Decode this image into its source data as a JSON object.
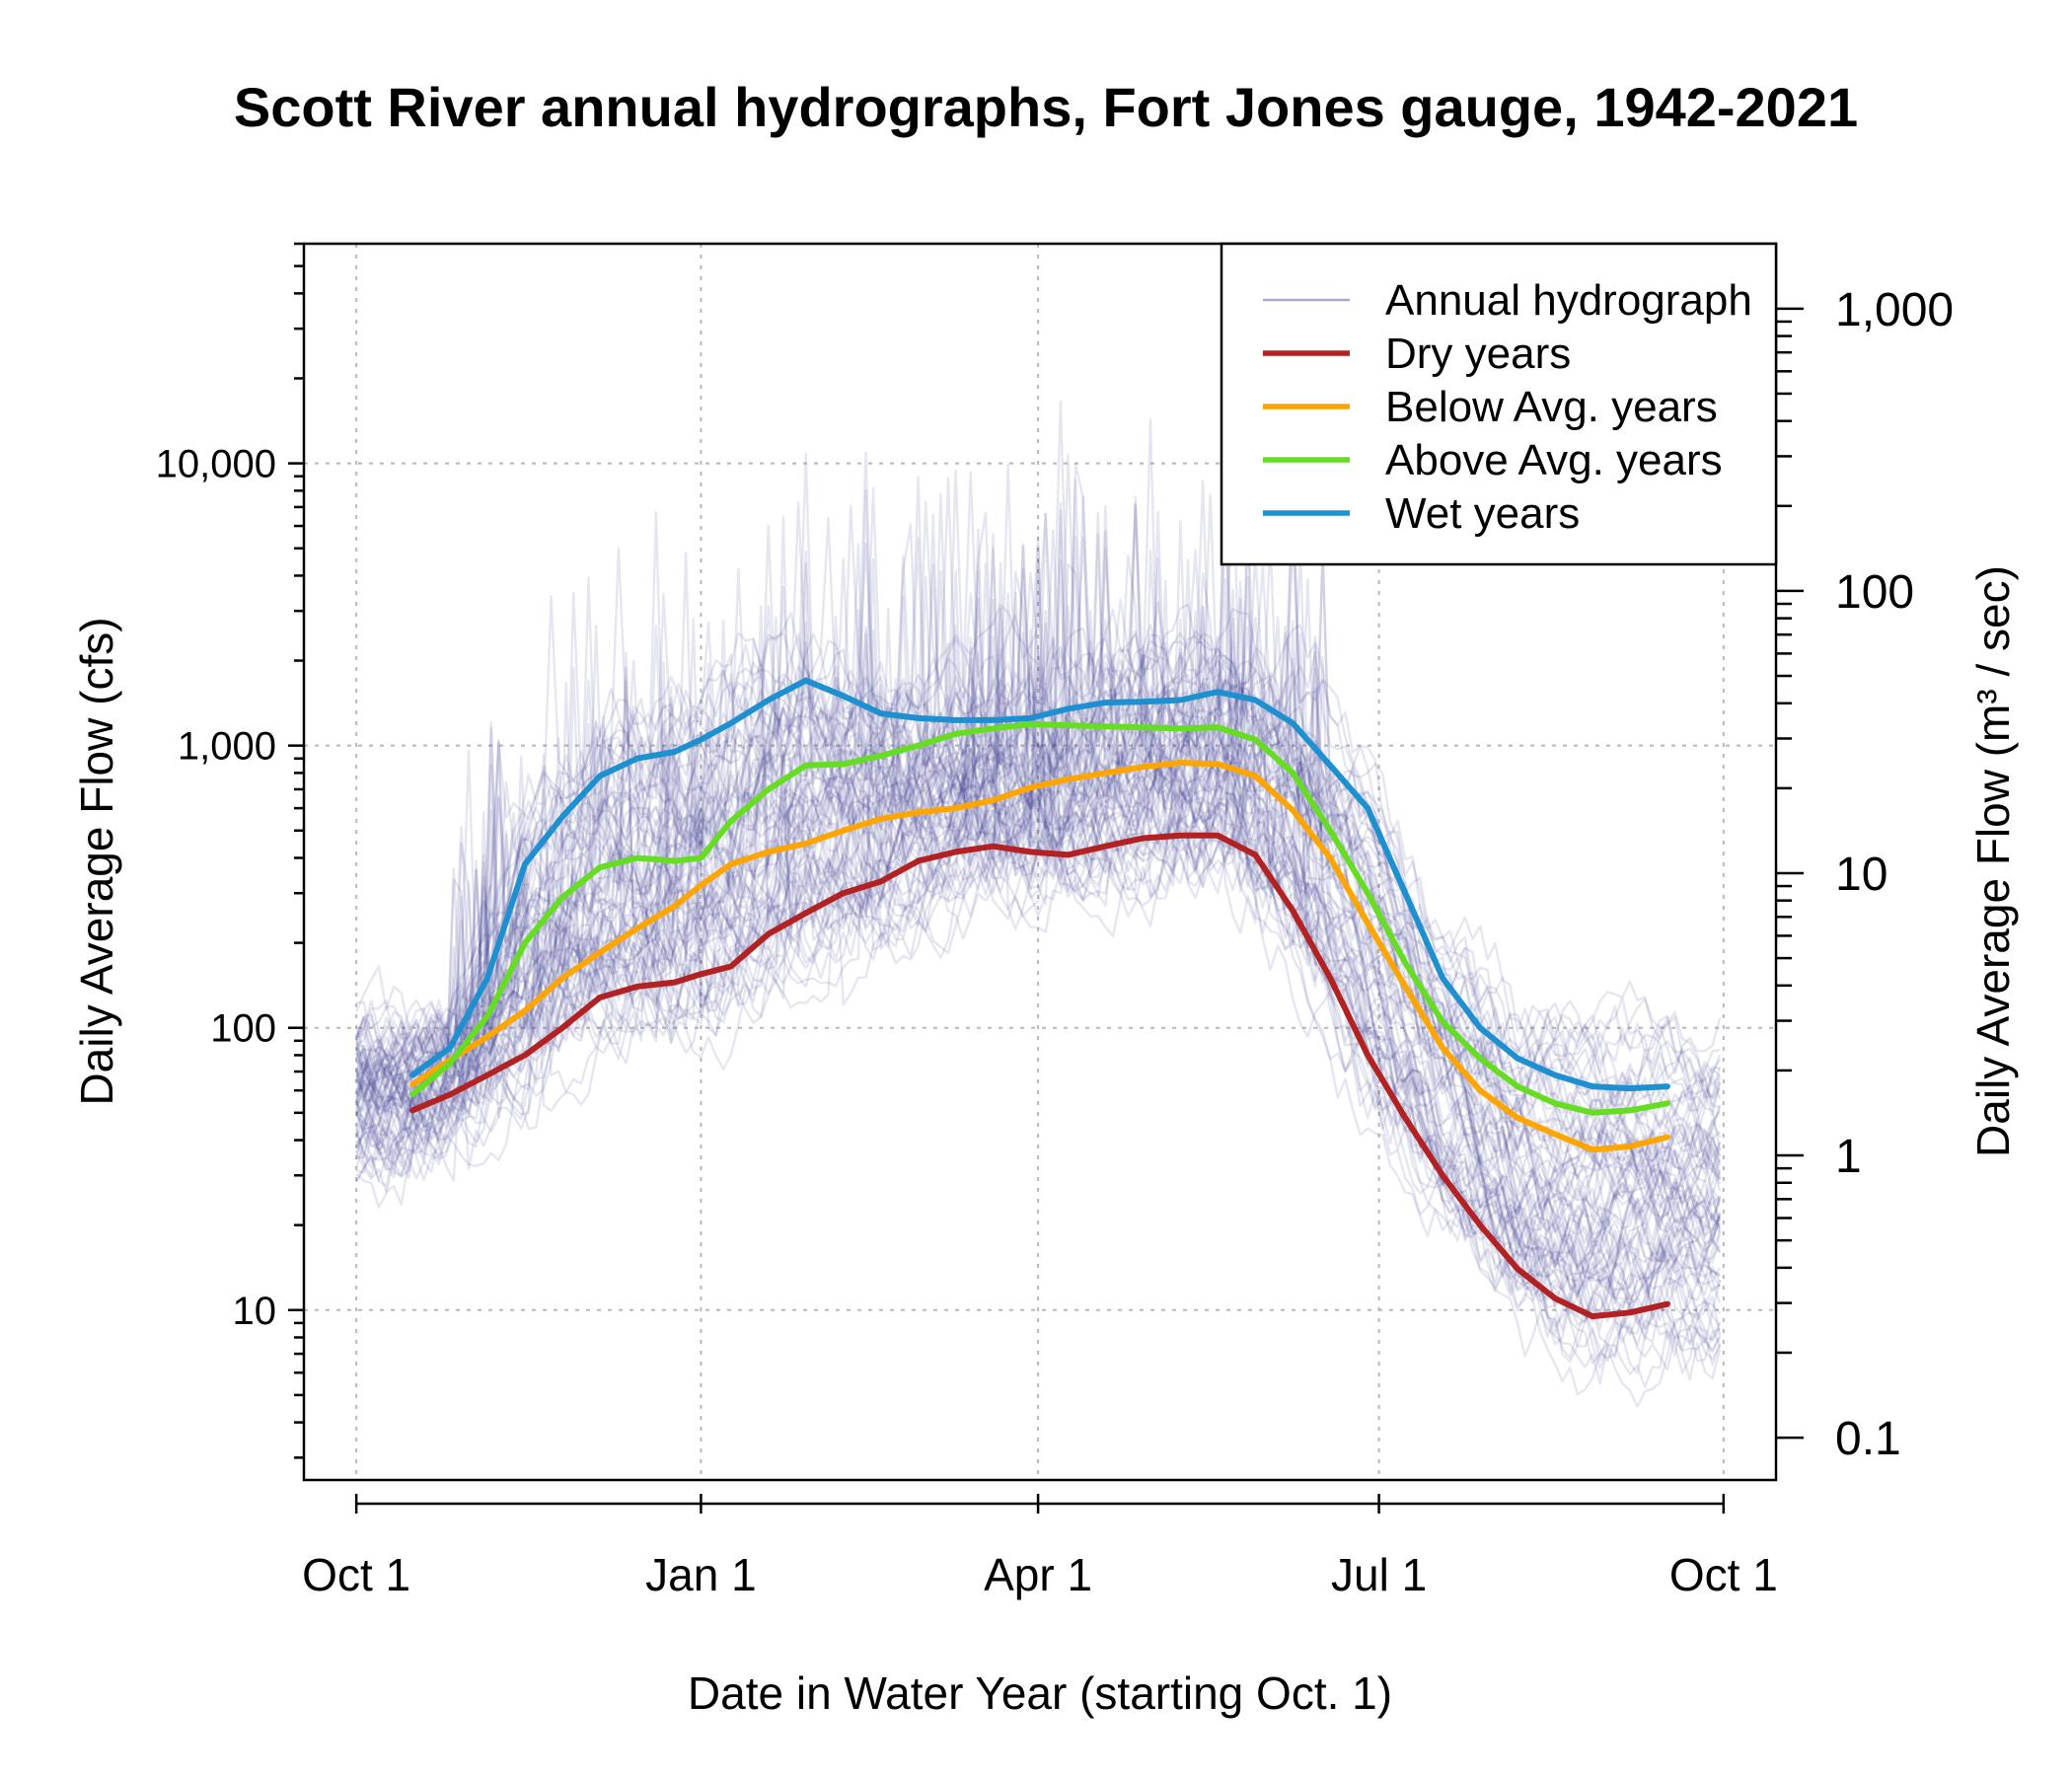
{
  "chart_data": {
    "type": "line",
    "title": "Scott River annual hydrographs, Fort Jones gauge, 1942-2021",
    "xlabel": "Date in Water Year (starting Oct. 1)",
    "ylabel": "Daily Average Flow (cfs)",
    "ylabel_right": "Daily Average Flow (m³ / sec)",
    "y_scale": "log",
    "ylim": [
      2.5,
      60000
    ],
    "x_ticks": [
      "Oct 1",
      "Jan 1",
      "Apr 1",
      "Jul 1",
      "Oct 1"
    ],
    "x_tick_days": [
      0,
      92,
      182,
      273,
      365
    ],
    "xlim": [
      -14,
      379
    ],
    "y_ticks": [
      10,
      100,
      1000,
      10000
    ],
    "y_tick_labels": [
      "10",
      "100",
      "1,000",
      "10,000"
    ],
    "y2_ticks": [
      0.1,
      1,
      10,
      100,
      1000
    ],
    "y2_tick_labels": [
      "0.1",
      "1",
      "10",
      "100",
      "1,000"
    ],
    "grid": true,
    "legend": {
      "position": "top-right",
      "entries": [
        {
          "label": "Annual hydrograph",
          "color": "#a9a9d3"
        },
        {
          "label": "Dry years",
          "color": "#b22222"
        },
        {
          "label": "Below Avg. years",
          "color": "#ffa500"
        },
        {
          "label": "Above Avg. years",
          "color": "#66dd22"
        },
        {
          "label": "Wet years",
          "color": "#1e90d0"
        }
      ]
    },
    "annual_hydrograph_count": 80,
    "x_unit": "days since Oct 1",
    "series": [
      {
        "name": "Dry years",
        "color": "#b22222",
        "x": [
          15,
          25,
          35,
          45,
          55,
          65,
          75,
          85,
          92,
          100,
          110,
          120,
          130,
          140,
          150,
          160,
          170,
          180,
          190,
          200,
          210,
          220,
          230,
          240,
          250,
          260,
          270,
          280,
          290,
          300,
          310,
          320,
          330,
          340,
          350
        ],
        "values": [
          51,
          58,
          68,
          80,
          100,
          128,
          140,
          145,
          155,
          165,
          215,
          255,
          300,
          330,
          390,
          420,
          440,
          420,
          410,
          440,
          470,
          480,
          480,
          410,
          260,
          150,
          80,
          48,
          30,
          20,
          14,
          11,
          9.5,
          9.8,
          10.5
        ]
      },
      {
        "name": "Below Avg. years",
        "color": "#ffa500",
        "x": [
          15,
          25,
          35,
          45,
          55,
          65,
          75,
          85,
          92,
          100,
          110,
          120,
          130,
          140,
          150,
          160,
          170,
          180,
          190,
          200,
          210,
          220,
          230,
          240,
          250,
          260,
          270,
          280,
          290,
          300,
          310,
          320,
          330,
          340,
          350
        ],
        "values": [
          63,
          77,
          93,
          115,
          150,
          185,
          225,
          270,
          320,
          380,
          420,
          450,
          500,
          550,
          580,
          600,
          640,
          710,
          760,
          800,
          840,
          870,
          860,
          780,
          590,
          400,
          235,
          140,
          85,
          60,
          48,
          42,
          37,
          38,
          41
        ]
      },
      {
        "name": "Above Avg. years",
        "color": "#66dd22",
        "x": [
          15,
          25,
          35,
          45,
          55,
          65,
          75,
          85,
          92,
          100,
          110,
          120,
          130,
          140,
          150,
          160,
          170,
          180,
          190,
          200,
          210,
          220,
          230,
          240,
          250,
          260,
          270,
          280,
          290,
          300,
          310,
          320,
          330,
          340,
          350
        ],
        "values": [
          58,
          75,
          110,
          200,
          290,
          370,
          400,
          390,
          400,
          540,
          700,
          850,
          860,
          920,
          1000,
          1100,
          1150,
          1190,
          1180,
          1170,
          1160,
          1150,
          1160,
          1050,
          800,
          500,
          300,
          170,
          105,
          78,
          62,
          54,
          50,
          51,
          54
        ]
      },
      {
        "name": "Wet years",
        "color": "#1e90d0",
        "x": [
          15,
          25,
          35,
          45,
          55,
          65,
          75,
          85,
          92,
          100,
          110,
          120,
          130,
          140,
          150,
          160,
          170,
          180,
          190,
          200,
          210,
          220,
          230,
          240,
          250,
          260,
          270,
          280,
          290,
          300,
          310,
          320,
          330,
          340,
          350
        ],
        "values": [
          68,
          85,
          150,
          380,
          560,
          780,
          900,
          950,
          1050,
          1200,
          1450,
          1700,
          1500,
          1300,
          1250,
          1230,
          1230,
          1250,
          1350,
          1420,
          1430,
          1450,
          1550,
          1450,
          1200,
          850,
          600,
          300,
          150,
          100,
          78,
          68,
          62,
          61,
          62
        ]
      }
    ]
  }
}
